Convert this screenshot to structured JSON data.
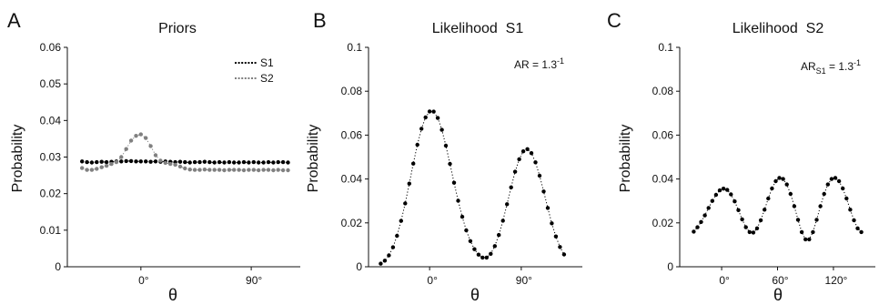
{
  "chart_data": [
    {
      "type": "scatter",
      "panel_label": "A",
      "title": "Priors",
      "xlabel": "θ",
      "ylabel": "Probability",
      "ylim": [
        0,
        0.06
      ],
      "xlim": [
        -60,
        130
      ],
      "yticks": [
        0,
        0.01,
        0.02,
        0.03,
        0.04,
        0.05,
        0.06
      ],
      "ytick_labels": [
        "0",
        "0.01",
        "0.02",
        "0.03",
        "0.04",
        "0.05",
        "0.06"
      ],
      "xticks": [
        0,
        90
      ],
      "xtick_labels": [
        "0°",
        "90°"
      ],
      "legend": {
        "position": "top-right",
        "entries": [
          "S1",
          "S2"
        ]
      },
      "series": [
        {
          "name": "S1",
          "color": "#000000",
          "x": [
            -48,
            -44,
            -40,
            -36,
            -32,
            -28,
            -24,
            -20,
            -16,
            -12,
            -8,
            -4,
            0,
            4,
            8,
            12,
            16,
            20,
            24,
            28,
            32,
            36,
            40,
            44,
            48,
            52,
            56,
            60,
            64,
            68,
            72,
            76,
            80,
            84,
            88,
            92,
            96,
            100,
            104,
            108,
            112,
            116,
            120
          ],
          "y": [
            0.0288,
            0.0286,
            0.0285,
            0.0286,
            0.0287,
            0.0286,
            0.0287,
            0.0288,
            0.0288,
            0.0289,
            0.0289,
            0.0288,
            0.0288,
            0.0288,
            0.0287,
            0.0288,
            0.0287,
            0.0288,
            0.0287,
            0.0286,
            0.0287,
            0.0286,
            0.0285,
            0.0286,
            0.0286,
            0.0287,
            0.0286,
            0.0285,
            0.0286,
            0.0285,
            0.0286,
            0.0285,
            0.0285,
            0.0286,
            0.0285,
            0.0286,
            0.0285,
            0.0285,
            0.0286,
            0.0285,
            0.0286,
            0.0286,
            0.0285
          ]
        },
        {
          "name": "S2",
          "color": "#808080",
          "x": [
            -48,
            -44,
            -40,
            -36,
            -32,
            -28,
            -24,
            -20,
            -16,
            -12,
            -8,
            -4,
            0,
            4,
            8,
            12,
            16,
            20,
            24,
            28,
            32,
            36,
            40,
            44,
            48,
            52,
            56,
            60,
            64,
            68,
            72,
            76,
            80,
            84,
            88,
            92,
            96,
            100,
            104,
            108,
            112,
            116,
            120
          ],
          "y": [
            0.027,
            0.0265,
            0.0265,
            0.0268,
            0.0272,
            0.0276,
            0.0281,
            0.0286,
            0.03,
            0.0322,
            0.0345,
            0.0358,
            0.0362,
            0.0352,
            0.033,
            0.0305,
            0.029,
            0.0284,
            0.0281,
            0.0279,
            0.0274,
            0.0269,
            0.0266,
            0.0265,
            0.0265,
            0.0266,
            0.0265,
            0.0265,
            0.0265,
            0.0264,
            0.0265,
            0.0265,
            0.0265,
            0.0264,
            0.0265,
            0.0265,
            0.0264,
            0.0265,
            0.0265,
            0.0264,
            0.0265,
            0.0264,
            0.0264
          ]
        }
      ]
    },
    {
      "type": "scatter",
      "panel_label": "B",
      "title": "Likelihood  S1",
      "xlabel": "θ",
      "ylabel": "Probability",
      "ylim": [
        0,
        0.1
      ],
      "xlim": [
        -60,
        150
      ],
      "yticks": [
        0,
        0.02,
        0.04,
        0.06,
        0.08,
        0.1
      ],
      "ytick_labels": [
        "0",
        "0.02",
        "0.04",
        "0.06",
        "0.08",
        "0.1"
      ],
      "xticks": [
        0,
        90
      ],
      "xtick_labels": [
        "0°",
        "90°"
      ],
      "annotation": {
        "base": "AR = 1.3",
        "sup": "-1"
      },
      "series": [
        {
          "name": "",
          "color": "#000000",
          "x": [
            -48,
            -44,
            -40,
            -36,
            -32,
            -28,
            -24,
            -20,
            -16,
            -12,
            -8,
            -4,
            0,
            4,
            8,
            12,
            16,
            20,
            24,
            28,
            32,
            36,
            40,
            44,
            48,
            52,
            56,
            60,
            64,
            68,
            72,
            76,
            80,
            84,
            88,
            92,
            96,
            100,
            104,
            108,
            112,
            116,
            120,
            124,
            128,
            132
          ],
          "y": [
            0.0014,
            0.0028,
            0.0052,
            0.0089,
            0.0141,
            0.0209,
            0.0289,
            0.0379,
            0.047,
            0.0556,
            0.0629,
            0.0681,
            0.0708,
            0.0707,
            0.0678,
            0.0624,
            0.0552,
            0.0469,
            0.0383,
            0.0301,
            0.0228,
            0.0166,
            0.0117,
            0.008,
            0.0055,
            0.0042,
            0.0042,
            0.0059,
            0.0094,
            0.0145,
            0.021,
            0.0285,
            0.0362,
            0.0433,
            0.049,
            0.0526,
            0.0536,
            0.0518,
            0.0476,
            0.0415,
            0.0343,
            0.0268,
            0.0198,
            0.0138,
            0.009,
            0.0056
          ]
        }
      ]
    },
    {
      "type": "scatter",
      "panel_label": "C",
      "title": "Likelihood  S2",
      "xlabel": "θ",
      "ylabel": "Probability",
      "ylim": [
        0,
        0.1
      ],
      "xlim": [
        -45,
        165
      ],
      "yticks": [
        0,
        0.02,
        0.04,
        0.06,
        0.08,
        0.1
      ],
      "ytick_labels": [
        "0",
        "0.02",
        "0.04",
        "0.06",
        "0.08",
        "0.1"
      ],
      "xticks": [
        0,
        60,
        120
      ],
      "xtick_labels": [
        "0°",
        "60°",
        "120°"
      ],
      "annotation": {
        "base": "AR",
        "sub": "S1",
        "rest": " = 1.3",
        "sup": "-1"
      },
      "series": [
        {
          "name": "",
          "color": "#000000",
          "x": [
            -30,
            -26,
            -22,
            -18,
            -14,
            -10,
            -6,
            -2,
            2,
            6,
            10,
            14,
            18,
            22,
            26,
            30,
            34,
            38,
            42,
            46,
            50,
            54,
            58,
            62,
            66,
            70,
            74,
            78,
            82,
            86,
            90,
            94,
            98,
            102,
            106,
            110,
            114,
            118,
            122,
            126,
            130,
            134,
            138,
            142,
            146,
            150
          ],
          "y": [
            0.016,
            0.018,
            0.0204,
            0.0234,
            0.0268,
            0.03,
            0.0328,
            0.0348,
            0.0356,
            0.035,
            0.033,
            0.0298,
            0.0258,
            0.0216,
            0.018,
            0.0158,
            0.0156,
            0.0175,
            0.0212,
            0.026,
            0.0311,
            0.0357,
            0.039,
            0.0405,
            0.04,
            0.0375,
            0.0332,
            0.0276,
            0.0214,
            0.0158,
            0.0125,
            0.0125,
            0.0158,
            0.0214,
            0.0276,
            0.0332,
            0.0375,
            0.04,
            0.0405,
            0.039,
            0.0357,
            0.0311,
            0.026,
            0.0212,
            0.0175,
            0.0158
          ]
        }
      ]
    }
  ]
}
